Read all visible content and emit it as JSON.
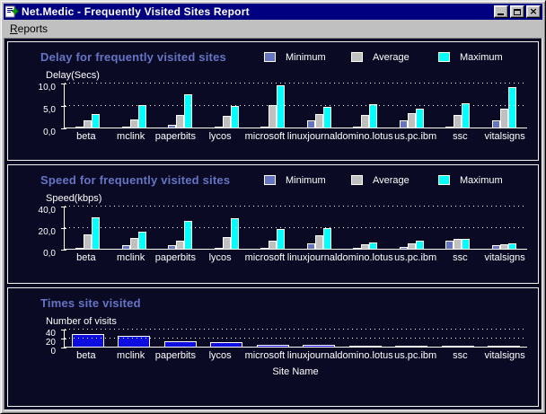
{
  "window": {
    "title": "Net.Medic - Frequently Visited Sites Report"
  },
  "menu": {
    "reports_first": "R",
    "reports_rest": "eports"
  },
  "colors": {
    "titlebar": "#000080",
    "panel_title": "#6674c4",
    "background": "#0a0a24",
    "minimum": "#6674c4",
    "average": "#c0c0c0",
    "maximum": "#00ffff",
    "visits_bar": "#0d0de0"
  },
  "chart_data": [
    {
      "type": "bar",
      "title": "Delay for frequently visited sites",
      "ylabel": "Delay(Secs)",
      "ymax": 10,
      "yticks": [
        "10,0",
        "5,0",
        "0,0"
      ],
      "grid": true,
      "legend": true,
      "legend_position": "top-right",
      "categories": [
        "beta",
        "mclink",
        "paperbits",
        "lycos",
        "microsoft",
        "linuxjournal",
        "domino.lotus",
        "us.pc.ibm",
        "ssc",
        "vitalsigns"
      ],
      "series": [
        {
          "name": "Minimum",
          "color": "#6674c4",
          "values": [
            0.2,
            0.3,
            0.7,
            0.1,
            0.1,
            1.6,
            0.1,
            1.6,
            0.2,
            1.6
          ]
        },
        {
          "name": "Average",
          "color": "#c0c0c0",
          "values": [
            1.7,
            1.8,
            2.9,
            2.7,
            5.2,
            3.0,
            2.9,
            3.2,
            2.9,
            4.2
          ]
        },
        {
          "name": "Maximum",
          "color": "#00ffff",
          "values": [
            3.1,
            5.1,
            7.6,
            4.8,
            9.6,
            4.6,
            5.3,
            4.3,
            5.6,
            9.1
          ]
        }
      ]
    },
    {
      "type": "bar",
      "title": "Speed for frequently visited sites",
      "ylabel": "Speed(kbps)",
      "ymax": 40,
      "yticks": [
        "40,0",
        "20,0",
        "0,0"
      ],
      "grid": true,
      "legend": true,
      "legend_position": "top-right",
      "categories": [
        "beta",
        "mclink",
        "paperbits",
        "lycos",
        "microsoft",
        "linuxjournal",
        "domino.lotus",
        "us.pc.ibm",
        "ssc",
        "vitalsigns"
      ],
      "series": [
        {
          "name": "Minimum",
          "color": "#6674c4",
          "values": [
            0.5,
            3,
            3,
            0.5,
            0.2,
            5,
            0.5,
            1.5,
            8,
            3
          ]
        },
        {
          "name": "Average",
          "color": "#c0c0c0",
          "values": [
            14,
            10,
            8,
            11,
            8,
            13,
            4,
            5,
            9.5,
            4
          ]
        },
        {
          "name": "Maximum",
          "color": "#00ffff",
          "values": [
            30,
            16,
            26,
            29,
            18.5,
            20,
            6,
            7.5,
            9.5,
            5.5
          ]
        }
      ]
    },
    {
      "type": "bar",
      "title": "Times site visited",
      "ylabel": "Number of visits",
      "xlabel": "Site Name",
      "ymax": 40,
      "yticks": [
        "40",
        "20",
        "0"
      ],
      "grid": true,
      "legend": false,
      "categories": [
        "beta",
        "mclink",
        "paperbits",
        "lycos",
        "microsoft",
        "linuxjournal",
        "domino.lotus",
        "us.pc.ibm",
        "ssc",
        "vitalsigns"
      ],
      "series": [
        {
          "name": "Visits",
          "color": "#0d0de0",
          "values": [
            30,
            26,
            13,
            10,
            5,
            5,
            1,
            1,
            1,
            2
          ]
        }
      ]
    }
  ]
}
